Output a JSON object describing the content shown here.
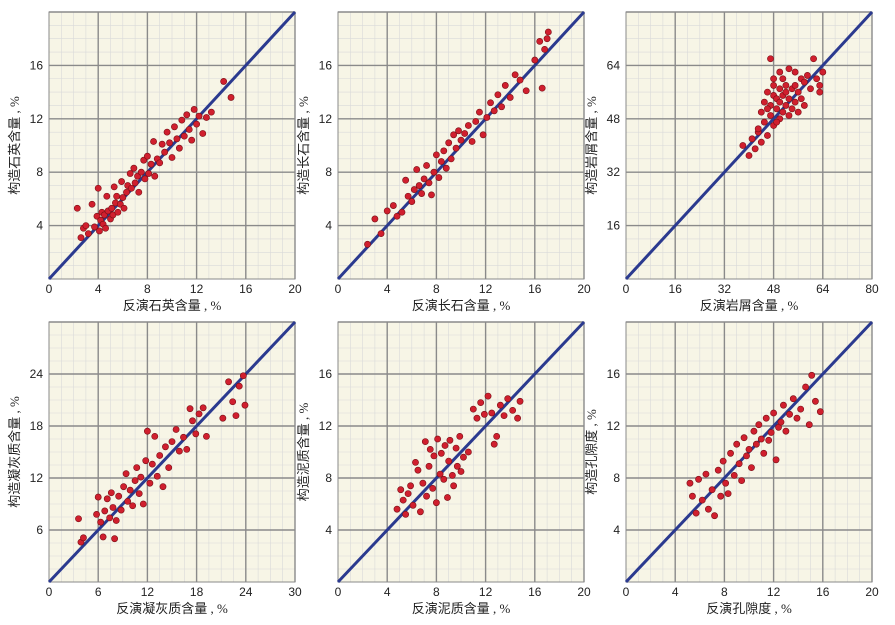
{
  "colors": {
    "panel_background": "#f7f5e6",
    "minor_grid": "#d9d9d9",
    "major_grid": "#8a8a8a",
    "reference_line": "#2b3a8f",
    "points": "#d01f2e",
    "point_edge": "#7a0f16"
  },
  "chart_data": [
    {
      "type": "scatter",
      "xlabel": "反演石英含量 , %",
      "ylabel": "构造石英含量 , %",
      "xlim": [
        0,
        20
      ],
      "ylim": [
        0,
        20
      ],
      "xticks": [
        0,
        4,
        8,
        12,
        16,
        20
      ],
      "yticks": [
        4,
        8,
        12,
        16
      ],
      "grid": true,
      "reference_line": "y = x",
      "points": [
        [
          2.3,
          5.3
        ],
        [
          2.6,
          3.1
        ],
        [
          2.8,
          3.8
        ],
        [
          3.0,
          4.0
        ],
        [
          3.2,
          3.4
        ],
        [
          3.5,
          5.6
        ],
        [
          3.7,
          3.9
        ],
        [
          3.9,
          4.7
        ],
        [
          4.0,
          6.8
        ],
        [
          4.1,
          3.6
        ],
        [
          4.2,
          4.4
        ],
        [
          4.3,
          5.0
        ],
        [
          4.4,
          4.1
        ],
        [
          4.5,
          4.8
        ],
        [
          4.6,
          3.8
        ],
        [
          4.7,
          6.2
        ],
        [
          4.8,
          5.1
        ],
        [
          5.0,
          4.5
        ],
        [
          5.1,
          5.3
        ],
        [
          5.2,
          4.8
        ],
        [
          5.3,
          6.9
        ],
        [
          5.4,
          5.7
        ],
        [
          5.5,
          6.2
        ],
        [
          5.6,
          5.0
        ],
        [
          5.8,
          5.6
        ],
        [
          5.9,
          7.3
        ],
        [
          6.0,
          6.1
        ],
        [
          6.1,
          5.3
        ],
        [
          6.3,
          6.5
        ],
        [
          6.4,
          7.0
        ],
        [
          6.6,
          7.9
        ],
        [
          6.7,
          6.8
        ],
        [
          6.9,
          8.3
        ],
        [
          7.0,
          7.2
        ],
        [
          7.2,
          7.7
        ],
        [
          7.3,
          6.5
        ],
        [
          7.5,
          8.0
        ],
        [
          7.7,
          8.9
        ],
        [
          7.8,
          7.5
        ],
        [
          8.0,
          9.2
        ],
        [
          8.1,
          7.9
        ],
        [
          8.3,
          8.6
        ],
        [
          8.5,
          10.3
        ],
        [
          8.6,
          7.7
        ],
        [
          8.8,
          9.0
        ],
        [
          9.0,
          8.7
        ],
        [
          9.2,
          10.1
        ],
        [
          9.4,
          9.5
        ],
        [
          9.6,
          11.0
        ],
        [
          9.8,
          10.2
        ],
        [
          10.0,
          9.1
        ],
        [
          10.2,
          11.4
        ],
        [
          10.4,
          10.5
        ],
        [
          10.6,
          9.8
        ],
        [
          10.8,
          11.9
        ],
        [
          11.0,
          10.7
        ],
        [
          11.2,
          12.3
        ],
        [
          11.4,
          11.2
        ],
        [
          11.6,
          10.4
        ],
        [
          11.8,
          12.7
        ],
        [
          12.0,
          11.6
        ],
        [
          12.2,
          12.2
        ],
        [
          12.5,
          10.9
        ],
        [
          12.8,
          12.1
        ],
        [
          13.2,
          12.5
        ],
        [
          14.2,
          14.8
        ],
        [
          14.8,
          13.6
        ]
      ]
    },
    {
      "type": "scatter",
      "xlabel": "反演长石含量 , %",
      "ylabel": "构造长石含量 , %",
      "xlim": [
        0,
        20
      ],
      "ylim": [
        0,
        20
      ],
      "xticks": [
        0,
        4,
        8,
        12,
        16,
        20
      ],
      "yticks": [
        4,
        8,
        12,
        16
      ],
      "grid": true,
      "reference_line": "y = x",
      "points": [
        [
          2.4,
          2.6
        ],
        [
          3.0,
          4.5
        ],
        [
          3.5,
          3.4
        ],
        [
          4.0,
          5.1
        ],
        [
          4.5,
          5.5
        ],
        [
          4.8,
          4.7
        ],
        [
          5.2,
          5.0
        ],
        [
          5.5,
          7.4
        ],
        [
          5.7,
          6.2
        ],
        [
          6.0,
          5.8
        ],
        [
          6.2,
          6.7
        ],
        [
          6.4,
          8.2
        ],
        [
          6.6,
          7.0
        ],
        [
          6.8,
          6.4
        ],
        [
          7.0,
          7.5
        ],
        [
          7.2,
          8.5
        ],
        [
          7.4,
          7.2
        ],
        [
          7.6,
          6.3
        ],
        [
          7.8,
          8.0
        ],
        [
          8.0,
          9.3
        ],
        [
          8.2,
          7.6
        ],
        [
          8.4,
          8.8
        ],
        [
          8.6,
          9.6
        ],
        [
          8.8,
          8.3
        ],
        [
          9.0,
          10.2
        ],
        [
          9.2,
          9.0
        ],
        [
          9.4,
          10.8
        ],
        [
          9.6,
          9.8
        ],
        [
          9.8,
          11.1
        ],
        [
          10.0,
          10.4
        ],
        [
          10.3,
          10.9
        ],
        [
          10.6,
          11.5
        ],
        [
          10.9,
          10.3
        ],
        [
          11.2,
          11.8
        ],
        [
          11.5,
          12.5
        ],
        [
          11.8,
          10.8
        ],
        [
          12.1,
          12.1
        ],
        [
          12.4,
          13.2
        ],
        [
          12.7,
          12.6
        ],
        [
          13.0,
          13.8
        ],
        [
          13.3,
          12.9
        ],
        [
          13.6,
          14.5
        ],
        [
          14.0,
          13.6
        ],
        [
          14.4,
          15.3
        ],
        [
          14.8,
          14.9
        ],
        [
          15.3,
          14.1
        ],
        [
          16.0,
          16.4
        ],
        [
          16.4,
          17.8
        ],
        [
          16.6,
          14.3
        ],
        [
          16.8,
          17.2
        ],
        [
          17.0,
          18.0
        ],
        [
          17.1,
          18.5
        ]
      ]
    },
    {
      "type": "scatter",
      "xlabel": "反演岩屑含量 , %",
      "ylabel": "构造岩屑含量 , %",
      "xlim": [
        0,
        80
      ],
      "ylim": [
        0,
        80
      ],
      "xticks": [
        0,
        16,
        32,
        48,
        64,
        80
      ],
      "yticks": [
        16,
        32,
        48,
        64
      ],
      "grid": true,
      "reference_line": "y = x",
      "points": [
        [
          38,
          40
        ],
        [
          40,
          37
        ],
        [
          41,
          42
        ],
        [
          42,
          39
        ],
        [
          43,
          44
        ],
        [
          44,
          41
        ],
        [
          44,
          50
        ],
        [
          45,
          47
        ],
        [
          45,
          53
        ],
        [
          46,
          43
        ],
        [
          46,
          56
        ],
        [
          47,
          49
        ],
        [
          47,
          52
        ],
        [
          47,
          66
        ],
        [
          48,
          46
        ],
        [
          48,
          55
        ],
        [
          48,
          58
        ],
        [
          49,
          51
        ],
        [
          49,
          54
        ],
        [
          50,
          48
        ],
        [
          50,
          53
        ],
        [
          50,
          57
        ],
        [
          51,
          50
        ],
        [
          51,
          55
        ],
        [
          51,
          60
        ],
        [
          52,
          52
        ],
        [
          52,
          56
        ],
        [
          53,
          49
        ],
        [
          53,
          54
        ],
        [
          54,
          51
        ],
        [
          54,
          57
        ],
        [
          55,
          53
        ],
        [
          55,
          58
        ],
        [
          56,
          50
        ],
        [
          56,
          56
        ],
        [
          57,
          54
        ],
        [
          57,
          60
        ],
        [
          58,
          52
        ],
        [
          58,
          59
        ],
        [
          59,
          61
        ],
        [
          60,
          57
        ],
        [
          61,
          66
        ],
        [
          62,
          60
        ],
        [
          63,
          58
        ],
        [
          64,
          62
        ],
        [
          63,
          56
        ],
        [
          43,
          45
        ],
        [
          46,
          51
        ],
        [
          49,
          47
        ],
        [
          52,
          58
        ],
        [
          55,
          62
        ],
        [
          53,
          63
        ],
        [
          48,
          60
        ],
        [
          50,
          62
        ]
      ]
    },
    {
      "type": "scatter",
      "xlabel": "反演凝灰质含量 , %",
      "ylabel": "构造凝灰质含量 , %",
      "xlim": [
        0,
        30
      ],
      "ylim": [
        0,
        30
      ],
      "xticks": [
        0,
        6,
        12,
        18,
        24,
        30
      ],
      "yticks": [
        6,
        12,
        18,
        24
      ],
      "grid": true,
      "reference_line": "y = x",
      "points": [
        [
          3.6,
          7.3
        ],
        [
          3.9,
          4.6
        ],
        [
          4.2,
          5.1
        ],
        [
          5.8,
          7.8
        ],
        [
          6.0,
          9.8
        ],
        [
          6.3,
          6.9
        ],
        [
          6.6,
          5.2
        ],
        [
          6.8,
          8.2
        ],
        [
          7.1,
          9.6
        ],
        [
          7.4,
          7.4
        ],
        [
          7.6,
          10.3
        ],
        [
          7.8,
          8.6
        ],
        [
          8.0,
          5.0
        ],
        [
          8.2,
          7.1
        ],
        [
          8.5,
          9.9
        ],
        [
          8.8,
          8.3
        ],
        [
          9.1,
          11.0
        ],
        [
          9.4,
          12.5
        ],
        [
          9.6,
          9.3
        ],
        [
          9.9,
          10.6
        ],
        [
          10.2,
          8.8
        ],
        [
          10.5,
          11.7
        ],
        [
          10.7,
          13.2
        ],
        [
          11.0,
          10.2
        ],
        [
          11.2,
          12.1
        ],
        [
          11.5,
          9.0
        ],
        [
          11.8,
          14.0
        ],
        [
          12.0,
          17.4
        ],
        [
          12.3,
          11.4
        ],
        [
          12.6,
          13.6
        ],
        [
          12.9,
          16.8
        ],
        [
          13.2,
          12.2
        ],
        [
          13.5,
          14.6
        ],
        [
          13.9,
          11.0
        ],
        [
          14.2,
          15.6
        ],
        [
          14.6,
          13.2
        ],
        [
          15.0,
          16.2
        ],
        [
          15.5,
          17.6
        ],
        [
          15.9,
          15.1
        ],
        [
          16.4,
          16.7
        ],
        [
          16.8,
          15.3
        ],
        [
          17.2,
          20.0
        ],
        [
          17.5,
          18.6
        ],
        [
          17.9,
          17.1
        ],
        [
          18.3,
          19.4
        ],
        [
          18.8,
          20.1
        ],
        [
          19.2,
          16.8
        ],
        [
          21.2,
          18.9
        ],
        [
          21.9,
          23.1
        ],
        [
          22.4,
          20.8
        ],
        [
          22.8,
          19.2
        ],
        [
          23.2,
          22.6
        ],
        [
          23.7,
          23.8
        ],
        [
          23.9,
          20.4
        ]
      ]
    },
    {
      "type": "scatter",
      "xlabel": "反演泥质含量 , %",
      "ylabel": "构造泥质含量 , %",
      "xlim": [
        0,
        20
      ],
      "ylim": [
        0,
        20
      ],
      "xticks": [
        0,
        4,
        8,
        12,
        16,
        20
      ],
      "yticks": [
        4,
        8,
        12,
        16
      ],
      "grid": true,
      "reference_line": "y = x",
      "points": [
        [
          4.8,
          5.6
        ],
        [
          5.1,
          7.1
        ],
        [
          5.3,
          6.3
        ],
        [
          5.5,
          5.2
        ],
        [
          5.7,
          6.8
        ],
        [
          5.9,
          7.4
        ],
        [
          6.1,
          5.9
        ],
        [
          6.3,
          9.2
        ],
        [
          6.5,
          8.6
        ],
        [
          6.7,
          5.4
        ],
        [
          6.9,
          7.6
        ],
        [
          7.1,
          10.8
        ],
        [
          7.2,
          6.6
        ],
        [
          7.4,
          8.9
        ],
        [
          7.5,
          10.2
        ],
        [
          7.7,
          7.2
        ],
        [
          7.8,
          9.7
        ],
        [
          8.0,
          6.1
        ],
        [
          8.1,
          11.0
        ],
        [
          8.3,
          8.3
        ],
        [
          8.4,
          9.9
        ],
        [
          8.6,
          7.9
        ],
        [
          8.7,
          10.5
        ],
        [
          8.9,
          6.5
        ],
        [
          9.0,
          9.3
        ],
        [
          9.1,
          10.9
        ],
        [
          9.3,
          8.2
        ],
        [
          9.4,
          7.4
        ],
        [
          9.6,
          10.3
        ],
        [
          9.7,
          8.9
        ],
        [
          9.9,
          11.2
        ],
        [
          10.0,
          8.5
        ],
        [
          10.2,
          9.6
        ],
        [
          10.6,
          10.0
        ],
        [
          11.0,
          13.3
        ],
        [
          11.3,
          12.6
        ],
        [
          11.6,
          13.8
        ],
        [
          11.9,
          12.9
        ],
        [
          12.2,
          14.3
        ],
        [
          12.5,
          13.0
        ],
        [
          12.7,
          10.6
        ],
        [
          12.9,
          11.2
        ],
        [
          13.2,
          13.6
        ],
        [
          13.5,
          12.8
        ],
        [
          13.8,
          14.1
        ],
        [
          14.2,
          13.2
        ],
        [
          14.6,
          12.6
        ],
        [
          14.8,
          13.9
        ]
      ]
    },
    {
      "type": "scatter",
      "xlabel": "反演孔隙度 , %",
      "ylabel": "构造孔隙度 , %",
      "xlim": [
        0,
        20
      ],
      "ylim": [
        0,
        20
      ],
      "xticks": [
        0,
        4,
        8,
        12,
        16,
        20
      ],
      "yticks": [
        4,
        8,
        12,
        16
      ],
      "grid": true,
      "reference_line": "y = x",
      "points": [
        [
          5.2,
          7.6
        ],
        [
          5.4,
          6.6
        ],
        [
          5.7,
          5.3
        ],
        [
          5.9,
          7.9
        ],
        [
          6.2,
          6.3
        ],
        [
          6.5,
          8.3
        ],
        [
          6.7,
          5.6
        ],
        [
          7.0,
          7.1
        ],
        [
          7.2,
          5.1
        ],
        [
          7.5,
          8.6
        ],
        [
          7.7,
          6.6
        ],
        [
          7.9,
          9.3
        ],
        [
          8.1,
          7.6
        ],
        [
          8.3,
          6.8
        ],
        [
          8.5,
          9.9
        ],
        [
          8.8,
          8.2
        ],
        [
          9.0,
          10.6
        ],
        [
          9.2,
          9.1
        ],
        [
          9.4,
          7.8
        ],
        [
          9.6,
          11.1
        ],
        [
          9.8,
          9.7
        ],
        [
          10.0,
          10.2
        ],
        [
          10.2,
          8.8
        ],
        [
          10.4,
          11.6
        ],
        [
          10.6,
          10.6
        ],
        [
          10.8,
          12.1
        ],
        [
          11.0,
          11.0
        ],
        [
          11.2,
          9.9
        ],
        [
          11.4,
          12.6
        ],
        [
          11.6,
          10.9
        ],
        [
          11.8,
          11.5
        ],
        [
          12.0,
          13.0
        ],
        [
          12.2,
          9.4
        ],
        [
          12.4,
          11.9
        ],
        [
          12.6,
          12.3
        ],
        [
          12.8,
          13.6
        ],
        [
          13.0,
          11.6
        ],
        [
          13.3,
          12.9
        ],
        [
          13.6,
          14.1
        ],
        [
          13.9,
          12.6
        ],
        [
          14.2,
          13.3
        ],
        [
          14.6,
          15.0
        ],
        [
          14.9,
          12.1
        ],
        [
          15.1,
          15.9
        ],
        [
          15.4,
          13.9
        ],
        [
          15.8,
          13.1
        ]
      ]
    }
  ]
}
